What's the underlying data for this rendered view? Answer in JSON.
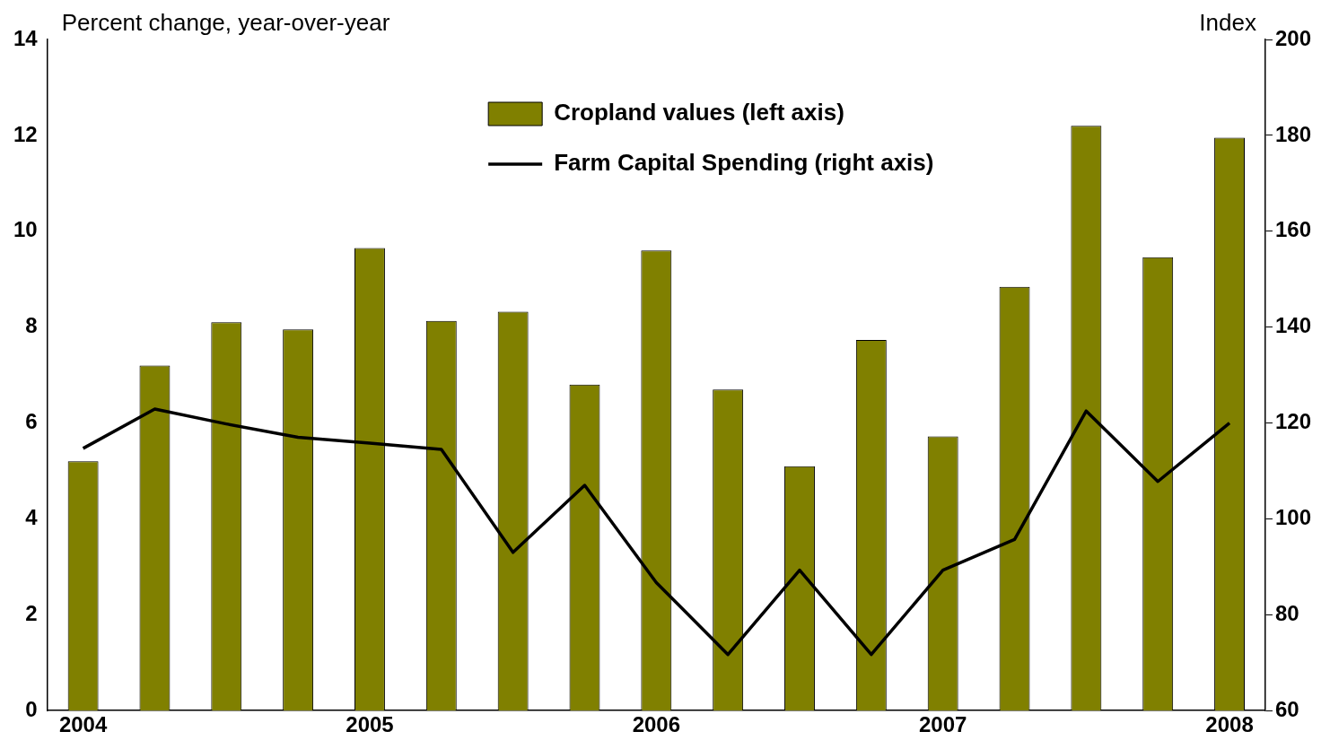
{
  "chart_data": {
    "type": "bar",
    "ylabel": "Percent change, year-over-year",
    "y2label": "Index",
    "categories": [
      "2004",
      null,
      null,
      null,
      "2005",
      null,
      null,
      null,
      "2006",
      null,
      null,
      null,
      "2007",
      null,
      null,
      null,
      "2008"
    ],
    "series": [
      {
        "name": "Cropland values (left axis)",
        "color": "#808000",
        "values": [
          5.2,
          7.2,
          8.1,
          7.95,
          9.65,
          8.13,
          8.32,
          6.8,
          9.6,
          6.7,
          5.1,
          7.73,
          5.72,
          8.84,
          12.2,
          9.46,
          11.95
        ]
      },
      {
        "name": "Farm Capital Spending (right axis)",
        "type": "line",
        "axis": "y2",
        "color": "#000000",
        "values": [
          114.7,
          122.9,
          119.8,
          117.0,
          115.8,
          114.5,
          93.0,
          107.0,
          86.7,
          71.7,
          89.3,
          71.7,
          89.3,
          95.7,
          122.5,
          107.8,
          120.0
        ]
      }
    ],
    "ylim": [
      0,
      14
    ],
    "yticks": [
      0,
      2,
      4,
      6,
      8,
      10,
      12,
      14
    ],
    "y2lim": [
      60,
      200
    ],
    "y2ticks": [
      60,
      80,
      100,
      120,
      140,
      160,
      180,
      200
    ],
    "grid": false,
    "legend": "top",
    "marker": "none",
    "line_style": "solid"
  }
}
